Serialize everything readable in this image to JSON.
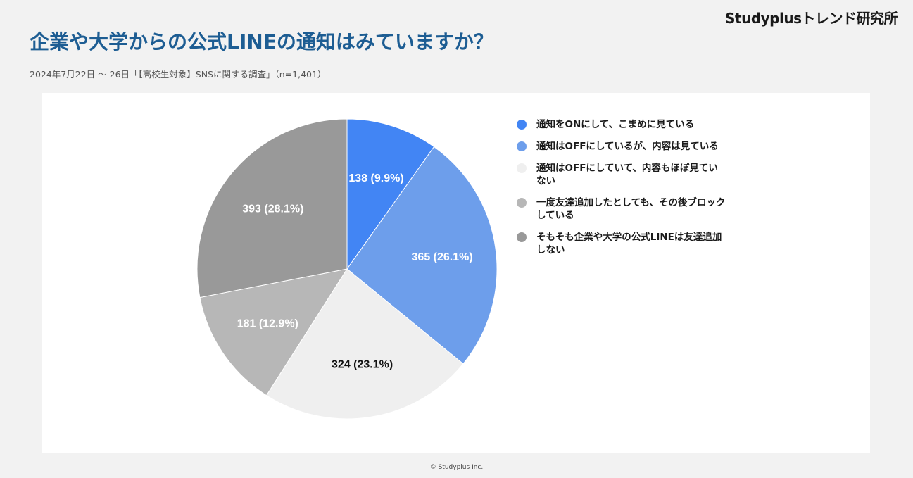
{
  "brand": "Studyplusトレンド研究所",
  "title": "企業や大学からの公式LINEの通知はみていますか？",
  "subtitle": "2024年7月22日 〜 26日「【高校生対象】SNSに関する調査」（n=1,401）",
  "footer": "© Studyplus Inc.",
  "chart_data": {
    "type": "pie",
    "title": "企業や大学からの公式LINEの通知はみていますか？",
    "legend_position": "right",
    "slices": [
      {
        "label": "通知をONにして、こまめに見ている",
        "value": 138,
        "percent": 9.9,
        "display": "138 (9.9%)",
        "color": "#4285f4",
        "text_color": "#ffffff"
      },
      {
        "label": "通知はOFFにしているが、内容は見ている",
        "value": 365,
        "percent": 26.1,
        "display": "365 (26.1%)",
        "color": "#6d9eeb",
        "text_color": "#ffffff"
      },
      {
        "label": "通知はOFFにしていて、内容もほぼ見ていない",
        "value": 324,
        "percent": 23.1,
        "display": "324 (23.1%)",
        "color": "#efefef",
        "text_color": "#111111"
      },
      {
        "label": "一度友達追加したとしても、その後ブロックしている",
        "value": 181,
        "percent": 12.9,
        "display": "181 (12.9%)",
        "color": "#b7b7b7",
        "text_color": "#ffffff"
      },
      {
        "label": "そもそも企業や大学の公式LINEは友達追加しない",
        "value": 393,
        "percent": 28.1,
        "display": "393 (28.1%)",
        "color": "#999999",
        "text_color": "#ffffff"
      }
    ]
  }
}
